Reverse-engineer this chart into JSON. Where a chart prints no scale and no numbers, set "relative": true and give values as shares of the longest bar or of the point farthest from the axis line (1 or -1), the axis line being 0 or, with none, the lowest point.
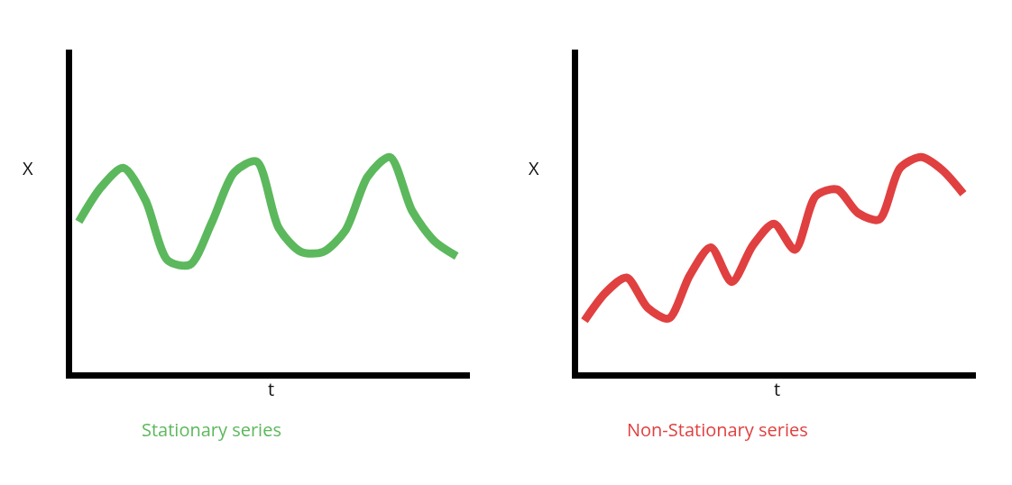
{
  "chart_data": [
    {
      "type": "line",
      "relative": true,
      "ylabel": "X",
      "xlabel": "t",
      "annotations": [
        "Stationary series"
      ],
      "categories": [
        null,
        null,
        null,
        null,
        null,
        null,
        null,
        null,
        null,
        null,
        null,
        null,
        null,
        null,
        null,
        null,
        null,
        null
      ],
      "series": [
        {
          "color": "#5cb85c",
          "values": [
            0.7,
            0.86,
            0.95,
            0.8,
            0.52,
            0.5,
            0.7,
            0.93,
            0.98,
            0.67,
            0.56,
            0.56,
            0.66,
            0.91,
            1.0,
            0.75,
            0.61,
            0.54
          ]
        }
      ],
      "marker": "none",
      "line_style": "solid"
    },
    {
      "type": "line",
      "relative": true,
      "ylabel": "X",
      "xlabel": "t",
      "annotations": [
        "Non-Stationary series"
      ],
      "categories": [
        null,
        null,
        null,
        null,
        null,
        null,
        null,
        null,
        null,
        null,
        null,
        null,
        null,
        null,
        null,
        null,
        null,
        null,
        null
      ],
      "series": [
        {
          "color": "#e04040",
          "values": [
            0.24,
            0.37,
            0.44,
            0.3,
            0.25,
            0.45,
            0.58,
            0.42,
            0.59,
            0.69,
            0.57,
            0.82,
            0.85,
            0.74,
            0.71,
            0.95,
            1.0,
            0.94,
            0.83
          ]
        }
      ],
      "marker": "none",
      "line_style": "solid"
    }
  ]
}
